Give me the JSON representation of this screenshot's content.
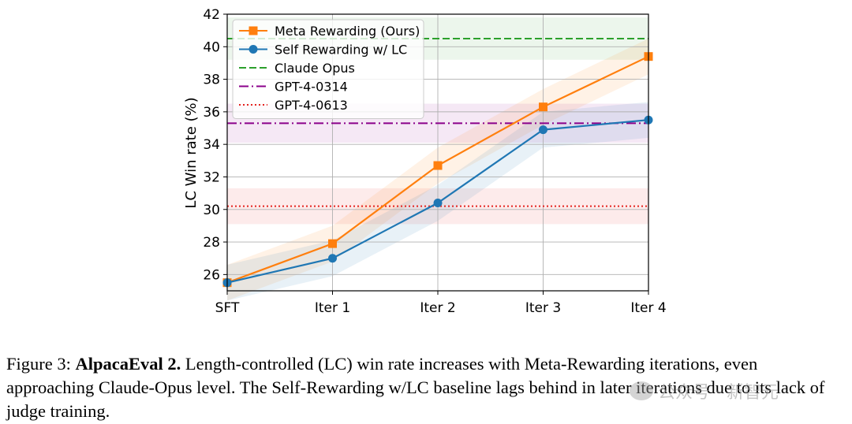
{
  "chart_data": {
    "type": "line",
    "categories": [
      "SFT",
      "Iter 1",
      "Iter 2",
      "Iter 3",
      "Iter 4"
    ],
    "ylabel": "LC Win rate (%)",
    "xlabel": "",
    "ylim": [
      25,
      42
    ],
    "yticks": [
      26,
      28,
      30,
      32,
      34,
      36,
      38,
      40,
      42
    ],
    "grid": true,
    "legend_position": "top-left",
    "series": [
      {
        "name": "Meta Rewarding (Ours)",
        "values": [
          25.5,
          27.9,
          32.7,
          36.3,
          39.4
        ],
        "band": 1.1,
        "color": "#ff7f0e",
        "marker": "square",
        "linestyle": "solid"
      },
      {
        "name": "Self Rewarding w/ LC",
        "values": [
          25.5,
          27.0,
          30.4,
          34.9,
          35.5
        ],
        "band": 1.1,
        "color": "#1f77b4",
        "marker": "circle",
        "linestyle": "solid"
      }
    ],
    "baselines": [
      {
        "name": "Claude Opus",
        "value": 40.5,
        "band": 1.3,
        "color": "#2ca02c",
        "linestyle": "dashed"
      },
      {
        "name": "GPT-4-0314",
        "value": 35.3,
        "band": 1.2,
        "color": "#8b008b",
        "linestyle": "dashdot"
      },
      {
        "name": "GPT-4-0613",
        "value": 30.2,
        "band": 1.1,
        "color": "#e4231f",
        "linestyle": "dotted"
      }
    ]
  },
  "caption": {
    "prefix": "Figure 3: ",
    "bold": "AlpacaEval 2.",
    "text": " Length-controlled (LC) win rate increases with Meta-Rewarding iterations, even approaching Claude-Opus level. The Self-Rewarding w/LC baseline lags behind in later iterations due to its lack of judge training."
  },
  "watermark": {
    "text": "公众号 · 新智元"
  }
}
